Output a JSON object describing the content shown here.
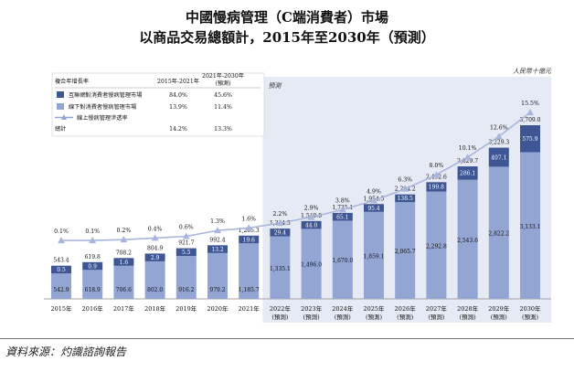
{
  "title": "中國慢病管理（C端消費者）市場",
  "subtitle": "以商品交易總額計，2015年至2030年（預測）",
  "unit_label": "人民幣十億元",
  "forecast_label": "預測",
  "source": "資料來源：灼識諮詢報告",
  "legend": {
    "header": "複合年增長率",
    "col1": "2015年-2021年",
    "col2_line1": "2021年-2030年",
    "col2_line2": "(預測)",
    "rows": [
      {
        "label": "互聯網對消費者慢病管理市場",
        "v1": "84.0%",
        "v2": "45.6%",
        "swatch": "#3e5694",
        "kind": "box"
      },
      {
        "label": "線下對消費者慢病管理市場",
        "v1": "13.9%",
        "v2": "11.4%",
        "swatch": "#93a5d3",
        "kind": "box"
      },
      {
        "label": "線上慢病管理滲透率",
        "v1": "",
        "v2": "",
        "swatch": "#93a5d3",
        "kind": "line"
      },
      {
        "label": "總計",
        "v1": "14.2%",
        "v2": "13.3%",
        "swatch": "",
        "kind": "none"
      }
    ]
  },
  "colors": {
    "online": "#3e5694",
    "offline": "#93a5d3",
    "line": "#a9b6dc",
    "forecast_bg": "#e6eaf5"
  },
  "chart_data": {
    "type": "bar",
    "stacked": true,
    "categories": [
      "2015年",
      "2016年",
      "2017年",
      "2018年",
      "2019年",
      "2020年",
      "2021年",
      "2022年",
      "2023年",
      "2024年",
      "2025年",
      "2026年",
      "2027年",
      "2028年",
      "2029年",
      "2030年"
    ],
    "forecast_sub": "(預測)",
    "forecast_from_index": 7,
    "series": [
      {
        "name": "線下對消費者慢病管理市場",
        "values": [
          542.9,
          618.9,
          706.6,
          802.0,
          916.2,
          979.2,
          1185.7,
          1335.1,
          1496.0,
          1670.0,
          1859.1,
          2065.7,
          2292.8,
          2543.6,
          2822.2,
          3133.1
        ],
        "labels": [
          "542.9",
          "618.9",
          "706.6",
          "802.0",
          "916.2",
          "979.2",
          "1,185.7",
          "1,335.1",
          "1,496.0",
          "1,670.0",
          "1,859.1",
          "2,065.7",
          "2,292.8",
          "2,543.6",
          "2,822.2",
          "3,133.1"
        ]
      },
      {
        "name": "互聯網對消費者慢病管理市場",
        "values": [
          0.5,
          0.9,
          1.6,
          2.9,
          5.5,
          13.2,
          19.6,
          29.4,
          44.0,
          65.1,
          95.4,
          138.5,
          199.8,
          286.1,
          407.1,
          575.9
        ],
        "labels": [
          "0.5",
          "0.9",
          "1.6",
          "2.9",
          "5.5",
          "13.2",
          "19.6",
          "29.4",
          "44.0",
          "65.1",
          "95.4",
          "138.5",
          "199.8",
          "286.1",
          "407.1",
          "575.9"
        ]
      }
    ],
    "totals": [
      "543.4",
      "619.8",
      "708.2",
      "804.9",
      "921.7",
      "992.4",
      "1,205.3",
      "1,364.5",
      "1,540.0",
      "1,735.1",
      "1,954.5",
      "2,204.2",
      "2,492.6",
      "2,829.7",
      "3,229.3",
      "3,709.0"
    ],
    "line": {
      "name": "線上慢病管理滲透率",
      "values": [
        0.1,
        0.1,
        0.2,
        0.4,
        0.6,
        1.3,
        1.6,
        2.2,
        2.9,
        3.8,
        4.9,
        6.3,
        8.0,
        10.1,
        12.6,
        15.5
      ],
      "labels": [
        "0.1%",
        "0.1%",
        "0.2%",
        "0.4%",
        "0.6%",
        "1.3%",
        "1.6%",
        "2.2%",
        "2.9%",
        "3.8%",
        "4.9%",
        "6.3%",
        "8.0%",
        "10.1%",
        "12.6%",
        "15.5%"
      ]
    }
  }
}
